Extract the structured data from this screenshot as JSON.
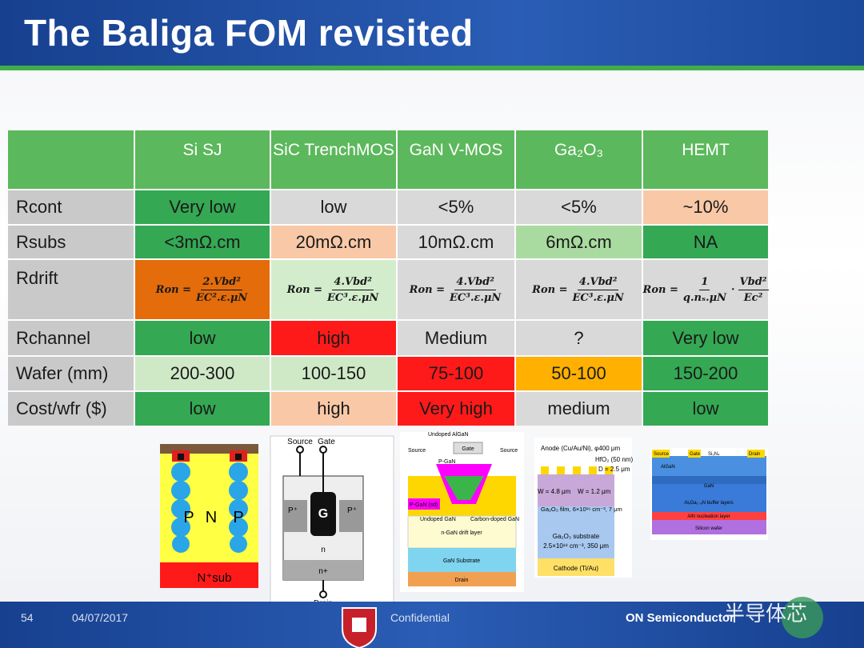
{
  "header": {
    "title": "The Baliga FOM revisited"
  },
  "table": {
    "columns": [
      "Si SJ",
      "SiC TrenchMOS",
      "GaN V-MOS",
      "Ga₂O₃",
      "HEMT"
    ],
    "header_color": "#5cb85c",
    "label_color": "#c9c9c9",
    "rows": [
      {
        "label": "Rcont",
        "cells": [
          {
            "text": "Very low",
            "color": "#34a853"
          },
          {
            "text": "low",
            "color": "#d9d9d9"
          },
          {
            "text": "<5%",
            "color": "#d9d9d9"
          },
          {
            "text": "<5%",
            "color": "#d9d9d9"
          },
          {
            "text": "~10%",
            "color": "#f9c8a6"
          }
        ]
      },
      {
        "label": "Rsubs",
        "cells": [
          {
            "text": "<3mΩ.cm",
            "color": "#34a853"
          },
          {
            "text": "20mΩ.cm",
            "color": "#f9c8a6"
          },
          {
            "text": "10mΩ.cm",
            "color": "#d9d9d9"
          },
          {
            "text": "6mΩ.cm",
            "color": "#a9dba0"
          },
          {
            "text": "NA",
            "color": "#34a853"
          }
        ]
      },
      {
        "label": "Rdrift",
        "cells": [
          {
            "formula": {
              "lhs": "Ron =",
              "fractions": [
                {
                  "num": "2.Vbd²",
                  "den": "EC².ε.μN"
                }
              ]
            },
            "color": "#e46c0a"
          },
          {
            "formula": {
              "lhs": "Ron =",
              "fractions": [
                {
                  "num": "4.Vbd²",
                  "den": "EC³.ε.μN"
                }
              ]
            },
            "color": "#d3edcc"
          },
          {
            "formula": {
              "lhs": "Ron =",
              "fractions": [
                {
                  "num": "4.Vbd²",
                  "den": "EC³.ε.μN"
                }
              ]
            },
            "color": "#d9d9d9"
          },
          {
            "formula": {
              "lhs": "Ron =",
              "fractions": [
                {
                  "num": "4.Vbd²",
                  "den": "EC³.ε.μN"
                }
              ]
            },
            "color": "#d9d9d9"
          },
          {
            "formula": {
              "lhs": "Ron =",
              "sep": "·",
              "fractions": [
                {
                  "num": "1",
                  "den": "q.nₛ.μN"
                },
                {
                  "num": "Vbd²",
                  "den": "Ec²"
                }
              ]
            },
            "color": "#d9d9d9"
          }
        ]
      },
      {
        "label": "Rchannel",
        "cells": [
          {
            "text": "low",
            "color": "#34a853"
          },
          {
            "text": "high",
            "color": "#ff1a1a"
          },
          {
            "text": "Medium",
            "color": "#d9d9d9"
          },
          {
            "text": "?",
            "color": "#d9d9d9"
          },
          {
            "text": "Very low",
            "color": "#34a853"
          }
        ]
      },
      {
        "label": "Wafer (mm)",
        "cells": [
          {
            "text": "200-300",
            "color": "#cfe9c7"
          },
          {
            "text": "100-150",
            "color": "#cfe9c7"
          },
          {
            "text": "75-100",
            "color": "#ff1a1a"
          },
          {
            "text": "50-100",
            "color": "#ffb000"
          },
          {
            "text": "150-200",
            "color": "#34a853"
          }
        ]
      },
      {
        "label": "Cost/wfr ($)",
        "cells": [
          {
            "text": "low",
            "color": "#34a853"
          },
          {
            "text": "high",
            "color": "#f9c8a6"
          },
          {
            "text": "Very high",
            "color": "#ff1a1a"
          },
          {
            "text": "medium",
            "color": "#d9d9d9"
          },
          {
            "text": "low",
            "color": "#34a853"
          }
        ]
      }
    ]
  },
  "diagrams": [
    {
      "labels": [
        "P",
        "N",
        "P",
        "N⁺sub"
      ]
    },
    {
      "labels": [
        "Source",
        "Gate",
        "G",
        "P⁺",
        "P⁺",
        "n",
        "n+",
        "Drain"
      ]
    },
    {
      "labels": [
        "Undoped AlGaN",
        "Gate",
        "Source",
        "Source",
        "P-GaN",
        "P-GaN (sd)",
        "Undoped GaN",
        "Carbon-doped GaN",
        "n-GaN drift layer",
        "GaN Substrate",
        "Drain"
      ]
    },
    {
      "labels": [
        "Anode (Cu/Au/Ni), φ400 μm",
        "HfO₂ (50 nm)",
        "D = 2.5 μm",
        "W = 4.8 μm",
        "W = 1.2 μm",
        "Ga₂O₃ film, 6×10¹⁶ cm⁻³, 7 μm",
        "Ga₂O₃ substrate",
        "2.5×10¹⁸ cm⁻³, 350 μm",
        "Cathode (Ti/Au)"
      ]
    },
    {
      "labels": [
        "Source",
        "Gate",
        "Si₃N₄",
        "Drain",
        "AlGaN",
        "GaN",
        "AlₓGa₁₋ₓN buffer layers",
        "AlN nucleation layer",
        "Silicon wafer"
      ]
    }
  ],
  "footer": {
    "page": "54",
    "date": "04/07/2017",
    "confidential": "Confidential",
    "company": "ON Semiconductor",
    "watermark": "半导体芯"
  }
}
